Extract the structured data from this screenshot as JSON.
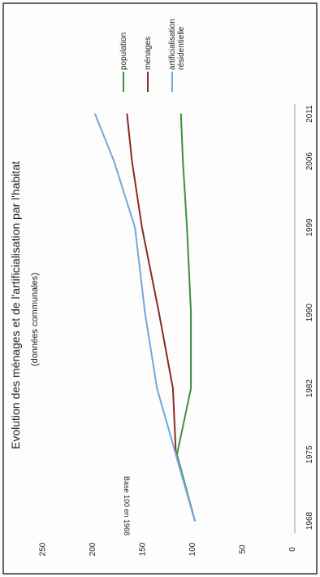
{
  "chart_data": {
    "type": "line",
    "title": "Evolution des ménages et de l'artificialisation par l'habitat",
    "subtitle": "(données communales)",
    "xlabel": "",
    "ylabel": "Base 100 en 1968",
    "x": [
      1968,
      1975,
      1982,
      1990,
      1999,
      2006,
      2011
    ],
    "x_tick_labels": [
      "1968",
      "1975",
      "1982",
      "1990",
      "1999",
      "2006",
      "2011"
    ],
    "ylim": [
      0,
      250
    ],
    "y_tick_labels": [
      "0",
      "50",
      "100",
      "150",
      "200",
      "250"
    ],
    "grid": false,
    "legend_position": "top-right",
    "series": [
      {
        "name": "population",
        "color": "#3f8f3a",
        "values": [
          100,
          118,
          104,
          104,
          108,
          112,
          114
        ]
      },
      {
        "name": "ménages",
        "color": "#8b2a26",
        "values": [
          100,
          119,
          122,
          136,
          153,
          163,
          168
        ]
      },
      {
        "name": "artificialisation résidentielle",
        "color": "#6fa8dc",
        "values": [
          100,
          119,
          138,
          150,
          160,
          181,
          200
        ]
      }
    ]
  }
}
